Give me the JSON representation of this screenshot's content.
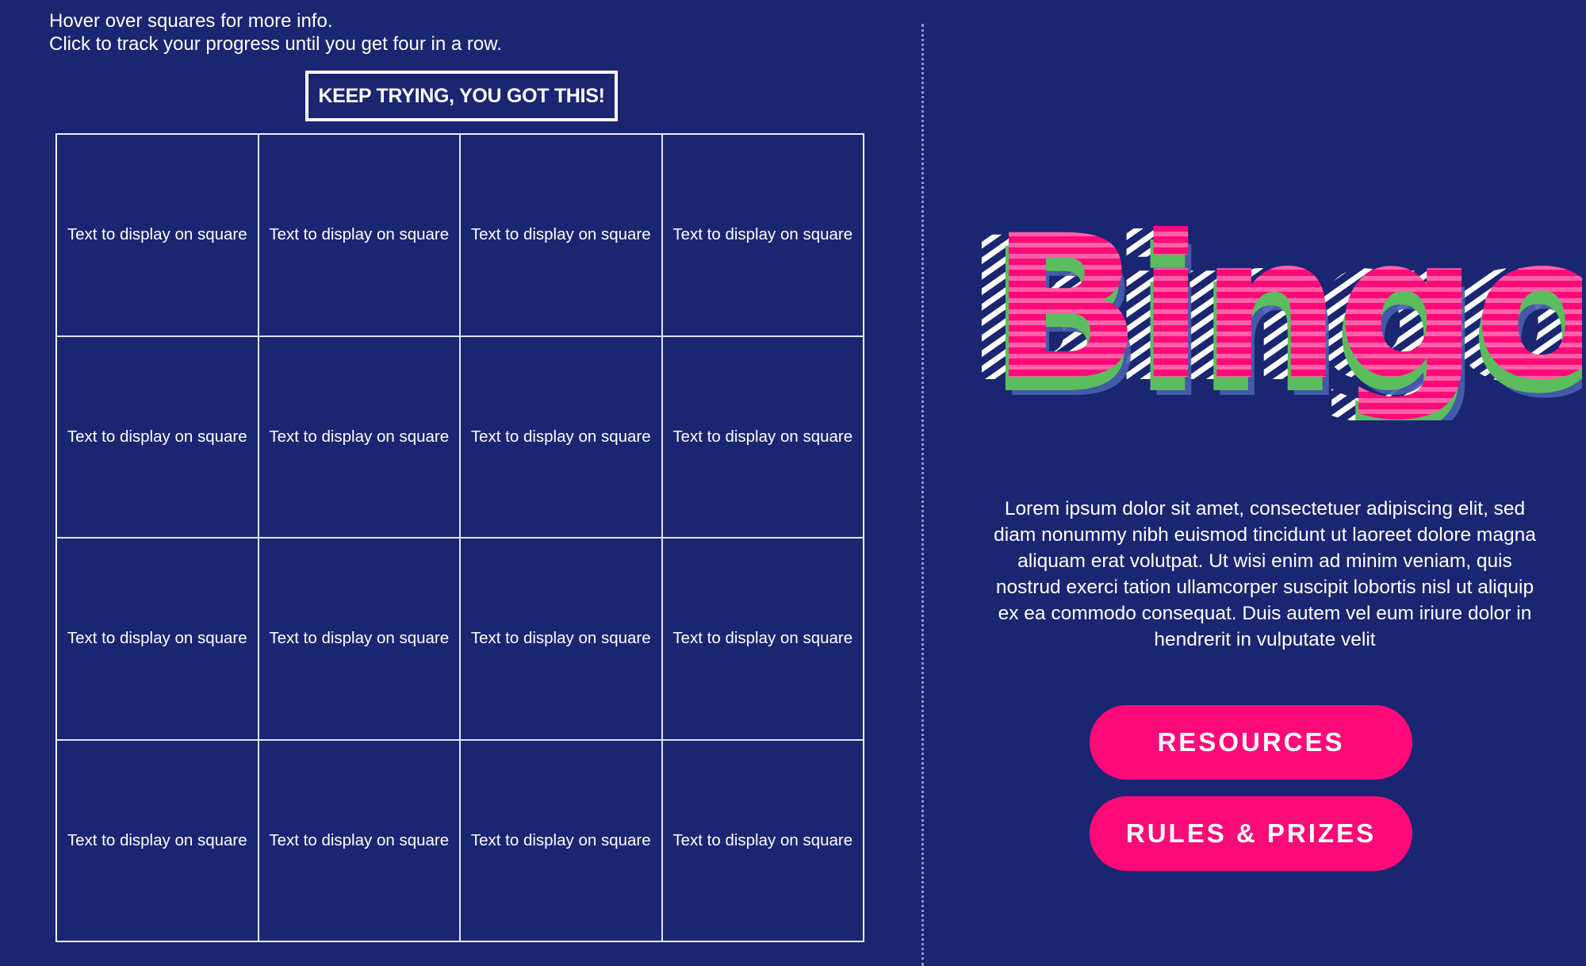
{
  "instructions": {
    "line1": "Hover over squares for more info.",
    "line2": "Click to track your progress until you get four in a row."
  },
  "status_label": "KEEP TRYING, YOU GOT THIS!",
  "grid": {
    "squares": [
      "Text to display on square",
      "Text to display on square",
      "Text to display on square",
      "Text to display on square",
      "Text to display on square",
      "Text to display on square",
      "Text to display on square",
      "Text to display on square",
      "Text to display on square",
      "Text to display on square",
      "Text to display on square",
      "Text to display on square",
      "Text to display on square",
      "Text to display on square",
      "Text to display on square",
      "Text to display on square"
    ]
  },
  "logo": {
    "text": "Bingo"
  },
  "description": "Lorem ipsum dolor sit amet, consectetuer adipiscing elit, sed diam nonummy nibh euismod tincidunt ut laoreet dolore magna aliquam erat volutpat. Ut wisi enim ad minim veniam, quis nostrud exerci tation ullamcorper suscipit lobortis nisl ut aliquip ex ea commodo consequat. Duis autem vel eum iriure dolor in hendrerit in vulputate velit",
  "buttons": {
    "resources": "RESOURCES",
    "rules": "RULES & PRIZES"
  },
  "colors": {
    "background": "#1a2672",
    "accent_pink": "#ff0a78",
    "accent_green": "#5bbd5e",
    "shadow_blue": "#4a5fb0"
  }
}
